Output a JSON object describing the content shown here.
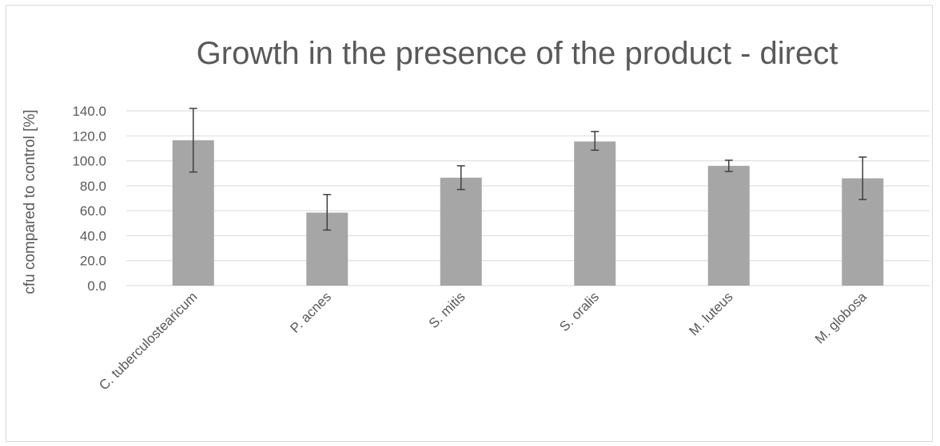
{
  "chart_data": {
    "type": "bar",
    "title": "Growth in the presence of the product - direct",
    "ylabel": "cfu compared to control [%]",
    "xlabel": "",
    "categories": [
      "C. tuberculostearicum",
      "P. acnes",
      "S. mitis",
      "S. oralis",
      "M. luteus",
      "M. globosa"
    ],
    "values": [
      116.5,
      58.5,
      86.5,
      115.5,
      96.0,
      86.0
    ],
    "error_high": [
      142.0,
      73.0,
      96.0,
      123.5,
      100.5,
      103.0
    ],
    "error_low": [
      91.0,
      44.5,
      77.0,
      108.5,
      91.5,
      69.0
    ],
    "ylim": [
      0,
      140
    ],
    "yticks": [
      "0.0",
      "20.0",
      "40.0",
      "60.0",
      "80.0",
      "100.0",
      "120.0",
      "140.0"
    ],
    "ytick_values": [
      0,
      20,
      40,
      60,
      80,
      100,
      120,
      140
    ],
    "grid": true,
    "legend": "none",
    "colors": {
      "bar": "#a6a6a6",
      "gridline": "#d9d9d9",
      "text": "#595959",
      "error_bar": "#404040"
    }
  }
}
